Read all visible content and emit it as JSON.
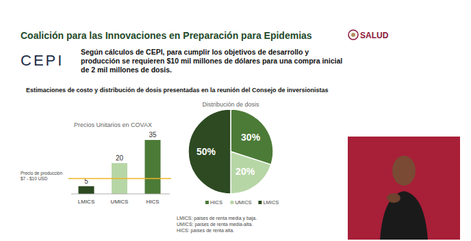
{
  "slide": {
    "title": "Coalición para las Innovaciones en Preparación para Epidemias",
    "logo": "SALUD",
    "org": "CEPI",
    "text": "Según cálculos de CEPI, para cumplir los objetivos de desarrollo y producción se requieren $10 mil millones de dólares para una compra inicial de 2 mil millones de dosis.",
    "subtitle": "Estimaciones de costo y distribución de dosis presentadas en la reunión del Consejo de inversionistas",
    "footnotes": [
      "LMICS: países de renta media y baja.",
      "UMICS: países de renta media-alta.",
      "HICS: países de renta alta."
    ]
  },
  "chart_data": [
    {
      "type": "bar",
      "title": "Precios Unitarios en COVAX",
      "categories": [
        "LMICS",
        "UMICS",
        "HICS"
      ],
      "values": [
        5,
        20,
        35
      ],
      "colors": [
        "#2d4a22",
        "#b7d6a6",
        "#4c7b37"
      ],
      "ylim": [
        0,
        35
      ],
      "tick_labels": "x",
      "data_labels": true,
      "annotations": [
        {
          "lines": [
            "Precio de producción",
            "$7 - $10 USD"
          ],
          "y": 10,
          "color": "#f0b323"
        }
      ]
    },
    {
      "type": "pie",
      "title": "Distribución de dosis",
      "categories": [
        "HICS",
        "UMICS",
        "LMICS"
      ],
      "values": [
        30,
        20,
        50
      ],
      "value_labels": [
        "30%",
        "20%",
        "50%"
      ],
      "colors": [
        "#4c7b37",
        "#b7d6a6",
        "#2d4a22"
      ],
      "data_labels": true,
      "legend": "bottom"
    }
  ]
}
